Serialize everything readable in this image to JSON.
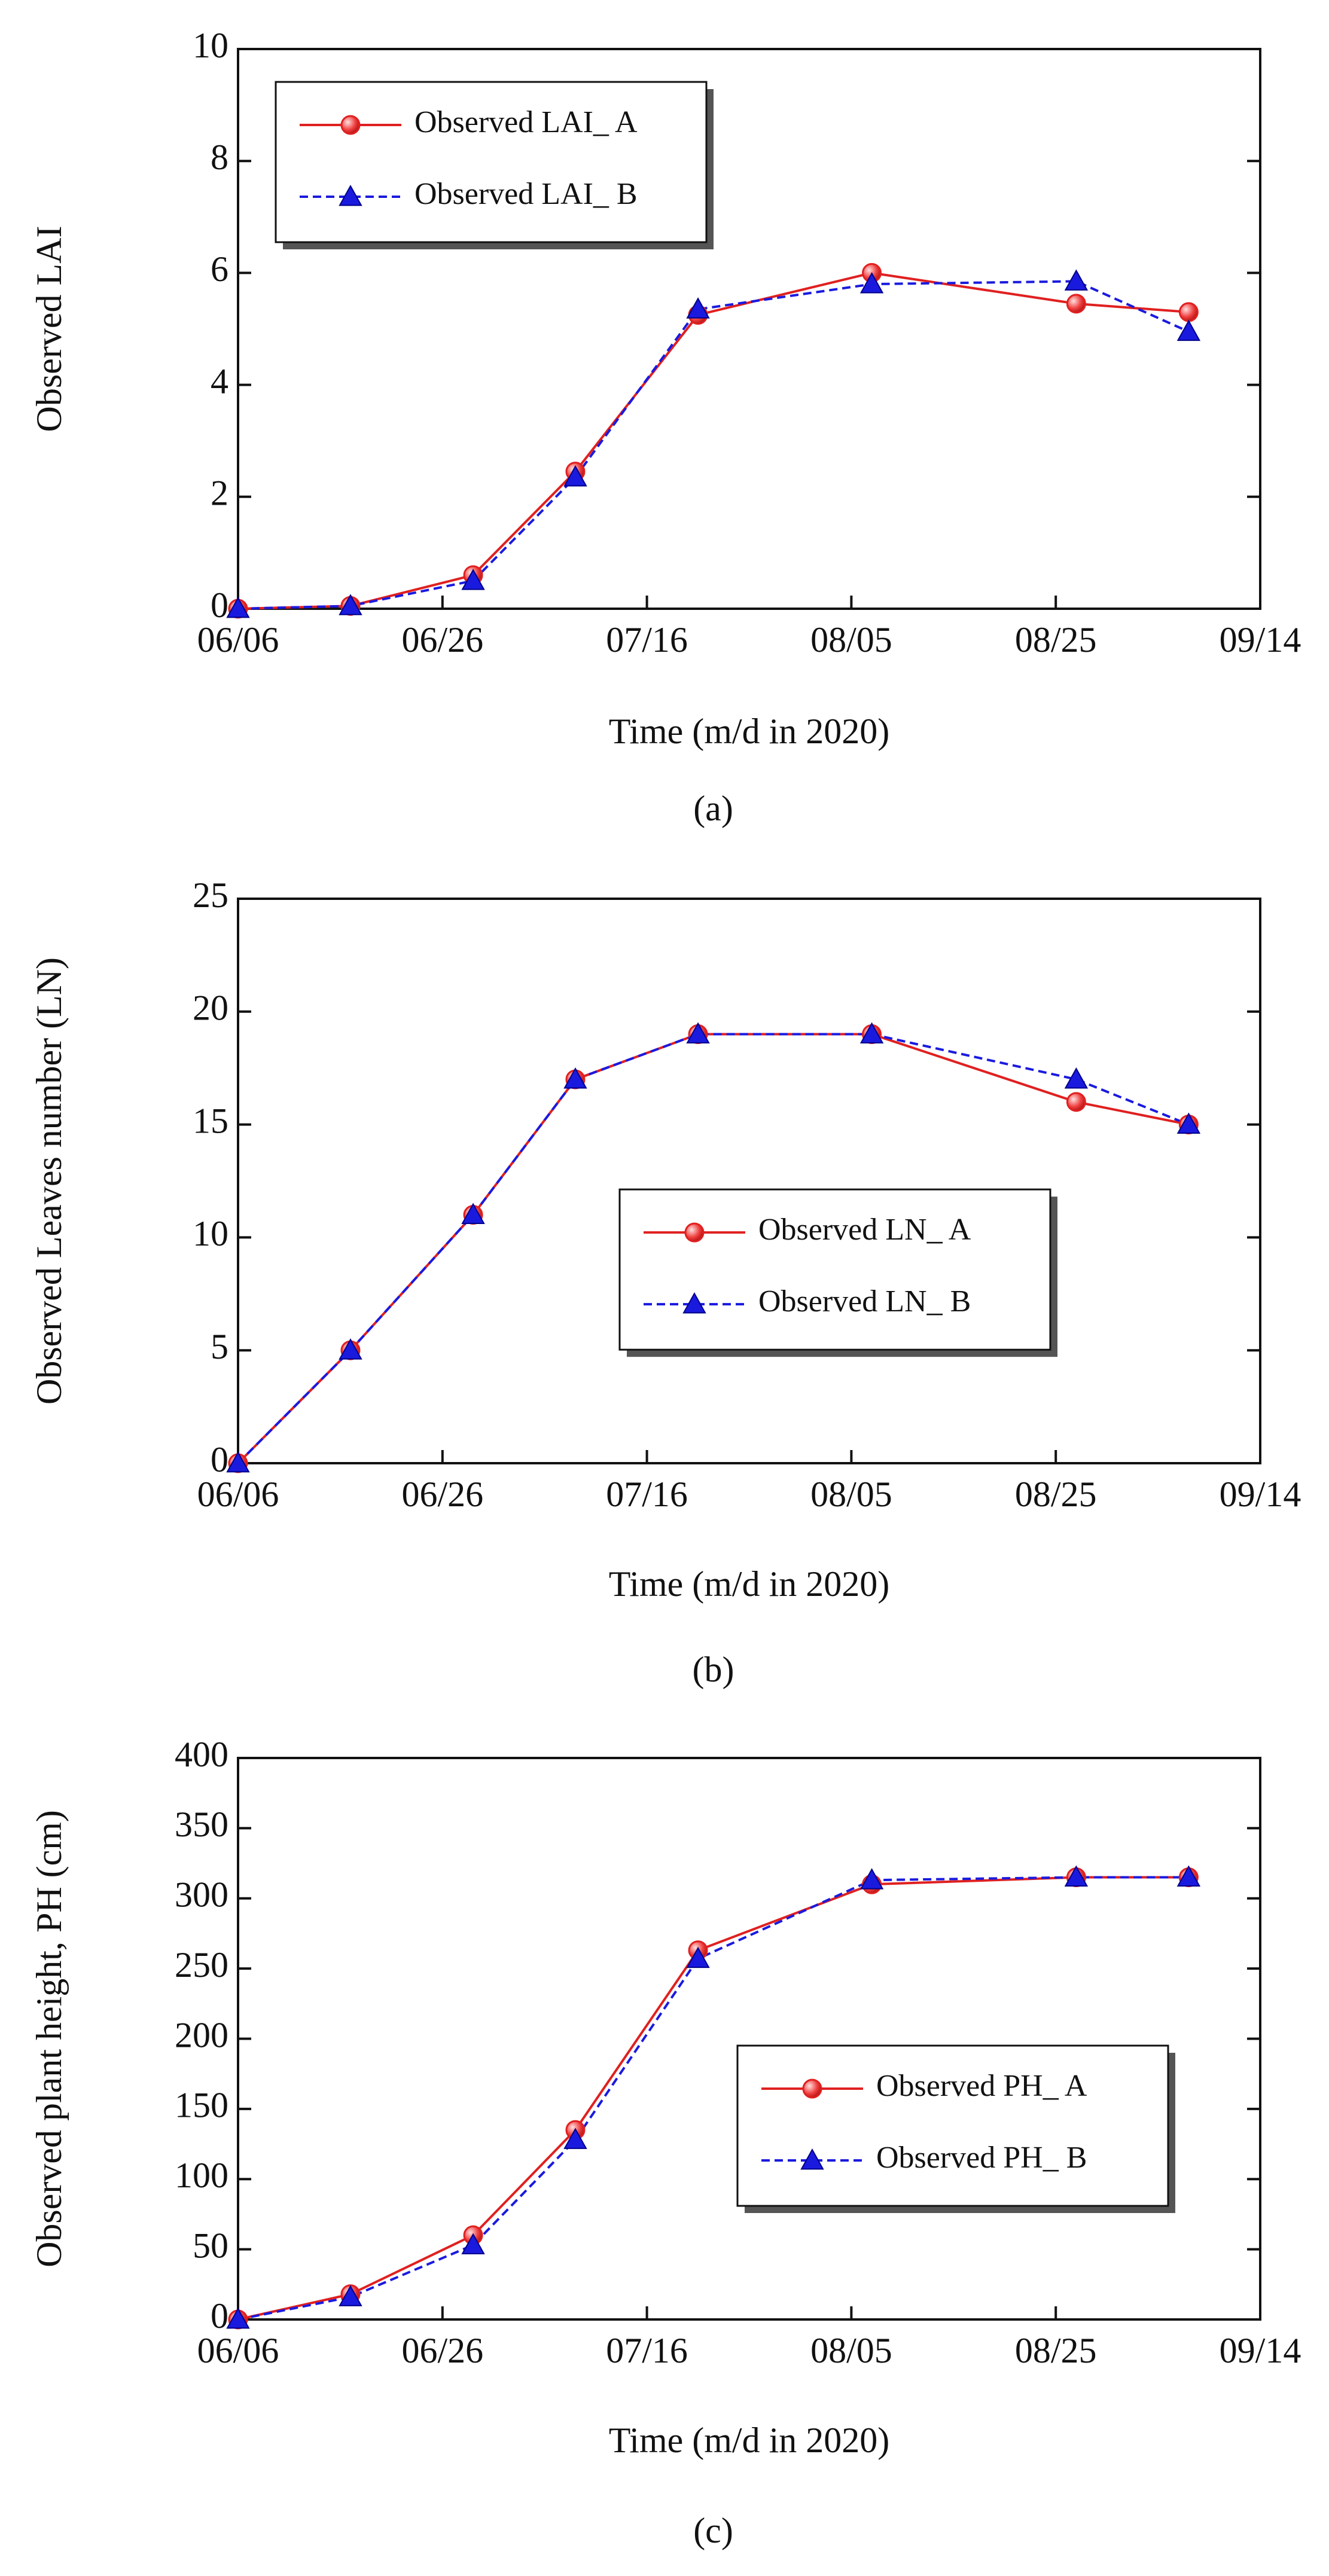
{
  "chart_data": [
    {
      "type": "line",
      "ylabel": "Observed LAI",
      "xlabel": "Time (m/d in 2020)",
      "caption": "(a)",
      "legend": "upper left",
      "x": [
        158,
        169,
        181,
        191,
        203,
        220,
        240,
        251
      ],
      "xlim": [
        158,
        258
      ],
      "xticks": [
        {
          "value": 158,
          "label": "06/06"
        },
        {
          "value": 178,
          "label": "06/26"
        },
        {
          "value": 198,
          "label": "07/16"
        },
        {
          "value": 218,
          "label": "08/05"
        },
        {
          "value": 238,
          "label": "08/25"
        },
        {
          "value": 258,
          "label": "09/14"
        }
      ],
      "ylim": [
        0,
        10
      ],
      "yticks": [
        0,
        2,
        4,
        6,
        8,
        10
      ],
      "series": [
        {
          "name": "Observed LAI_ A",
          "color": "#e02020",
          "marker": "circle",
          "linestyle": "solid",
          "values": [
            0,
            0.05,
            0.6,
            2.45,
            5.25,
            6.0,
            5.45,
            5.3
          ]
        },
        {
          "name": "Observed LAI_ B",
          "color": "#1a1adf",
          "marker": "triangle",
          "linestyle": "dashed",
          "values": [
            0,
            0.05,
            0.5,
            2.35,
            5.35,
            5.8,
            5.85,
            4.95
          ]
        }
      ]
    },
    {
      "type": "line",
      "ylabel": "Observed Leaves number (LN)",
      "xlabel": "Time (m/d in 2020)",
      "caption": "(b)",
      "legend": "center right",
      "x": [
        158,
        169,
        181,
        191,
        203,
        220,
        240,
        251
      ],
      "xlim": [
        158,
        258
      ],
      "xticks": [
        {
          "value": 158,
          "label": "06/06"
        },
        {
          "value": 178,
          "label": "06/26"
        },
        {
          "value": 198,
          "label": "07/16"
        },
        {
          "value": 218,
          "label": "08/05"
        },
        {
          "value": 238,
          "label": "08/25"
        },
        {
          "value": 258,
          "label": "09/14"
        }
      ],
      "ylim": [
        0,
        25
      ],
      "yticks": [
        0,
        5,
        10,
        15,
        20,
        25
      ],
      "series": [
        {
          "name": "Observed LN_ A",
          "color": "#e02020",
          "marker": "circle",
          "linestyle": "solid",
          "values": [
            0,
            5,
            11,
            17,
            19,
            19,
            16,
            15
          ]
        },
        {
          "name": "Observed LN_ B",
          "color": "#1a1adf",
          "marker": "triangle",
          "linestyle": "dashed",
          "values": [
            0,
            5,
            11,
            17,
            19,
            19,
            17,
            15
          ]
        }
      ]
    },
    {
      "type": "line",
      "ylabel": "Observed plant height, PH (cm)",
      "xlabel": "Time (m/d in 2020)",
      "caption": "(c)",
      "legend": "lower right",
      "x": [
        158,
        169,
        181,
        191,
        203,
        220,
        240,
        251
      ],
      "xlim": [
        158,
        258
      ],
      "xticks": [
        {
          "value": 158,
          "label": "06/06"
        },
        {
          "value": 178,
          "label": "06/26"
        },
        {
          "value": 198,
          "label": "07/16"
        },
        {
          "value": 218,
          "label": "08/05"
        },
        {
          "value": 238,
          "label": "08/25"
        },
        {
          "value": 258,
          "label": "09/14"
        }
      ],
      "ylim": [
        0,
        400
      ],
      "yticks": [
        0,
        50,
        100,
        150,
        200,
        250,
        300,
        350,
        400
      ],
      "series": [
        {
          "name": "Observed PH_ A",
          "color": "#e02020",
          "marker": "circle",
          "linestyle": "solid",
          "values": [
            0,
            18,
            60,
            135,
            263,
            310,
            315,
            315
          ]
        },
        {
          "name": "Observed PH_ B",
          "color": "#1a1adf",
          "marker": "triangle",
          "linestyle": "dashed",
          "values": [
            0,
            16,
            53,
            128,
            257,
            313,
            315,
            315
          ]
        }
      ]
    }
  ]
}
